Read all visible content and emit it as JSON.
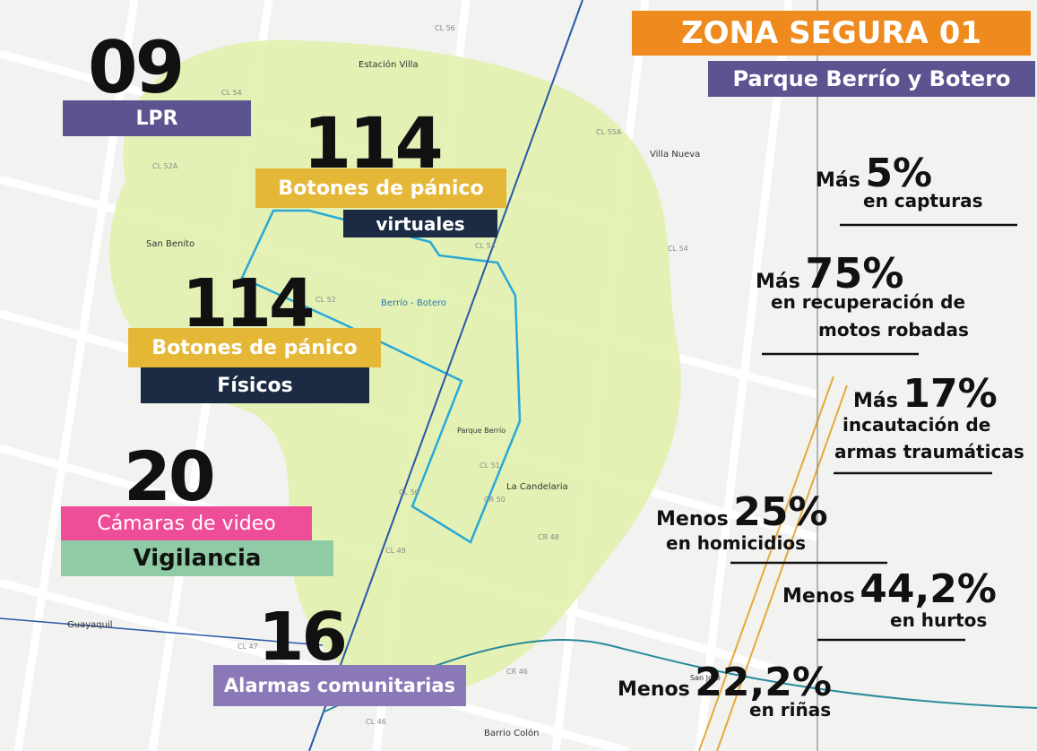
{
  "header": {
    "title": "ZONA SEGURA 01",
    "subtitle": "Parque Berrío y Botero"
  },
  "counts": [
    {
      "number": "09",
      "lines": [
        "LPR"
      ]
    },
    {
      "number": "114",
      "lines": [
        "Botones de pánico",
        "virtuales"
      ]
    },
    {
      "number": "114",
      "lines": [
        "Botones de pánico",
        "Físicos"
      ]
    },
    {
      "number": "20",
      "lines": [
        "Cámaras de video",
        "Vigilancia"
      ]
    },
    {
      "number": "16",
      "lines": [
        "Alarmas comunitarias"
      ]
    }
  ],
  "stats": [
    {
      "prefix": "Más",
      "value": "5%",
      "lines": [
        "en capturas"
      ]
    },
    {
      "prefix": "Más",
      "value": "75%",
      "lines": [
        "en recuperación de",
        "motos robadas"
      ]
    },
    {
      "prefix": "Más",
      "value": "17%",
      "lines": [
        "incautación de",
        "armas traumáticas"
      ]
    },
    {
      "prefix": "Menos",
      "value": "25%",
      "lines": [
        "en homicidios"
      ]
    },
    {
      "prefix": "Menos",
      "value": "44,2%",
      "lines": [
        "en hurtos"
      ]
    },
    {
      "prefix": "Menos",
      "value": "22,2%",
      "lines": [
        "en riñas"
      ]
    }
  ],
  "map_labels": [
    "Estación Villa",
    "Villa Nueva",
    "San Benito",
    "Berrío - Botero",
    "Parque Berrío",
    "La Candelaria",
    "Guayaquil",
    "Barrio Colón",
    "San José"
  ],
  "street_labels": [
    "CL 56",
    "CL 54",
    "CL 52A",
    "CL 53",
    "CL 52",
    "CL 51",
    "CL 50",
    "CL 49",
    "CL 47",
    "CL 46",
    "CR 50",
    "CR 48",
    "CR 46",
    "CL 55A",
    "CL 54"
  ]
}
